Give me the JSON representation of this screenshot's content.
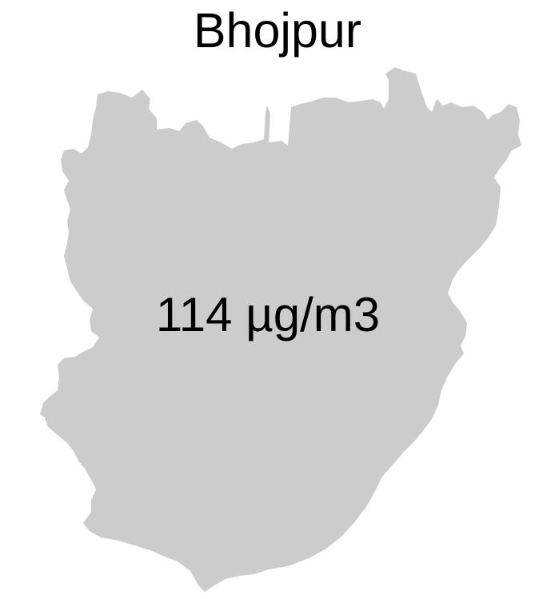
{
  "map": {
    "title": "Bhojpur",
    "value_label": "114 µg/m3",
    "region_fill": "#cccccc",
    "region_name": "Bhojpur"
  }
}
